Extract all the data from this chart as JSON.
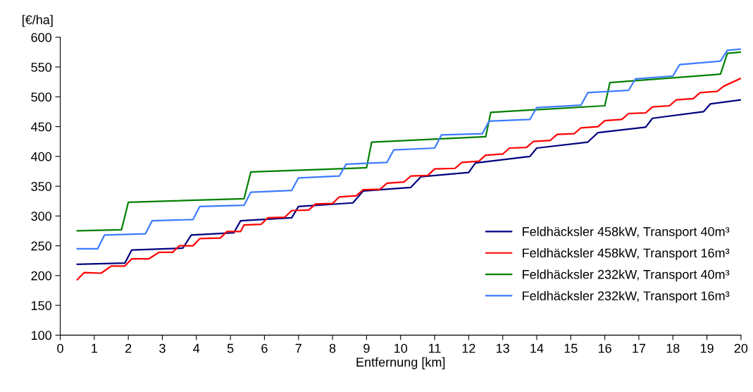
{
  "chart_data": {
    "type": "line",
    "ylabel": "[€/ha]",
    "xlabel": "Entfernung [km]",
    "xlim": [
      0,
      20
    ],
    "xticks": [
      0,
      1,
      2,
      3,
      4,
      5,
      6,
      7,
      8,
      9,
      10,
      11,
      12,
      13,
      14,
      15,
      16,
      17,
      18,
      19,
      20
    ],
    "ylim": [
      100,
      600
    ],
    "yticks": [
      100,
      150,
      200,
      250,
      300,
      350,
      400,
      450,
      500,
      550,
      600
    ],
    "grid": false,
    "legend": "bottom right",
    "marker": "none",
    "line_style": "solid",
    "series": [
      {
        "name": "Feldhäcksler 458kW, Transport 40m³",
        "color": "#000080",
        "x": [
          0.5,
          1.9,
          2.1,
          3.6,
          3.85,
          5.1,
          5.3,
          6.8,
          7.0,
          8.6,
          8.9,
          10.3,
          10.6,
          12.0,
          12.2,
          13.8,
          14.0,
          15.5,
          15.8,
          17.2,
          17.4,
          18.9,
          19.1,
          20
        ],
        "values": [
          219,
          221,
          243,
          246,
          268,
          272,
          292,
          297,
          316,
          322,
          342,
          348,
          366,
          373,
          389,
          400,
          414,
          424,
          440,
          449,
          464,
          475,
          488,
          495
        ]
      },
      {
        "name": "Feldhäcksler 458kW, Transport 16m³",
        "color": "#ff0000",
        "x": [
          0.5,
          0.7,
          1.2,
          1.5,
          1.9,
          2.1,
          2.6,
          2.9,
          3.3,
          3.5,
          3.9,
          4.1,
          4.7,
          4.9,
          5.3,
          5.4,
          5.9,
          6.1,
          6.6,
          6.8,
          7.3,
          7.5,
          8.0,
          8.2,
          8.7,
          8.9,
          9.4,
          9.6,
          10.1,
          10.3,
          10.8,
          11.0,
          11.6,
          11.8,
          12.3,
          12.5,
          13.0,
          13.2,
          13.7,
          13.9,
          14.4,
          14.6,
          15.1,
          15.3,
          15.8,
          16.0,
          16.5,
          16.7,
          17.2,
          17.4,
          17.9,
          18.1,
          18.6,
          18.8,
          19.3,
          19.5,
          20
        ],
        "values": [
          193,
          205,
          204,
          216,
          216,
          228,
          228,
          239,
          239,
          250,
          250,
          262,
          263,
          274,
          274,
          285,
          286,
          297,
          298,
          309,
          310,
          320,
          321,
          332,
          334,
          344,
          345,
          355,
          357,
          367,
          368,
          379,
          380,
          390,
          392,
          402,
          404,
          414,
          415,
          425,
          427,
          437,
          438,
          448,
          450,
          460,
          462,
          472,
          473,
          483,
          485,
          495,
          497,
          507,
          509,
          518,
          531
        ]
      },
      {
        "name": "Feldhäcksler 232kW, Transport 40m³",
        "color": "#008000",
        "x": [
          0.5,
          1.8,
          2.0,
          5.4,
          5.6,
          9.0,
          9.15,
          12.5,
          12.65,
          16.0,
          16.15,
          19.4,
          19.6,
          20
        ],
        "values": [
          275,
          277,
          323,
          329,
          374,
          381,
          424,
          433,
          474,
          485,
          524,
          538,
          573,
          575
        ]
      },
      {
        "name": "Feldhäcksler 232kW, Transport 16m³",
        "color": "#3d7bff",
        "x": [
          0.5,
          1.1,
          1.3,
          2.5,
          2.7,
          3.9,
          4.1,
          5.4,
          5.6,
          6.8,
          7.0,
          8.2,
          8.4,
          9.6,
          9.8,
          11.0,
          11.2,
          12.4,
          12.6,
          13.8,
          14.0,
          15.3,
          15.5,
          16.7,
          16.9,
          18.0,
          18.2,
          19.4,
          19.6,
          20
        ],
        "values": [
          245,
          245,
          268,
          270,
          292,
          294,
          316,
          318,
          340,
          343,
          364,
          367,
          387,
          390,
          411,
          414,
          436,
          438,
          459,
          462,
          482,
          486,
          507,
          511,
          530,
          535,
          554,
          560,
          578,
          580
        ]
      }
    ]
  }
}
